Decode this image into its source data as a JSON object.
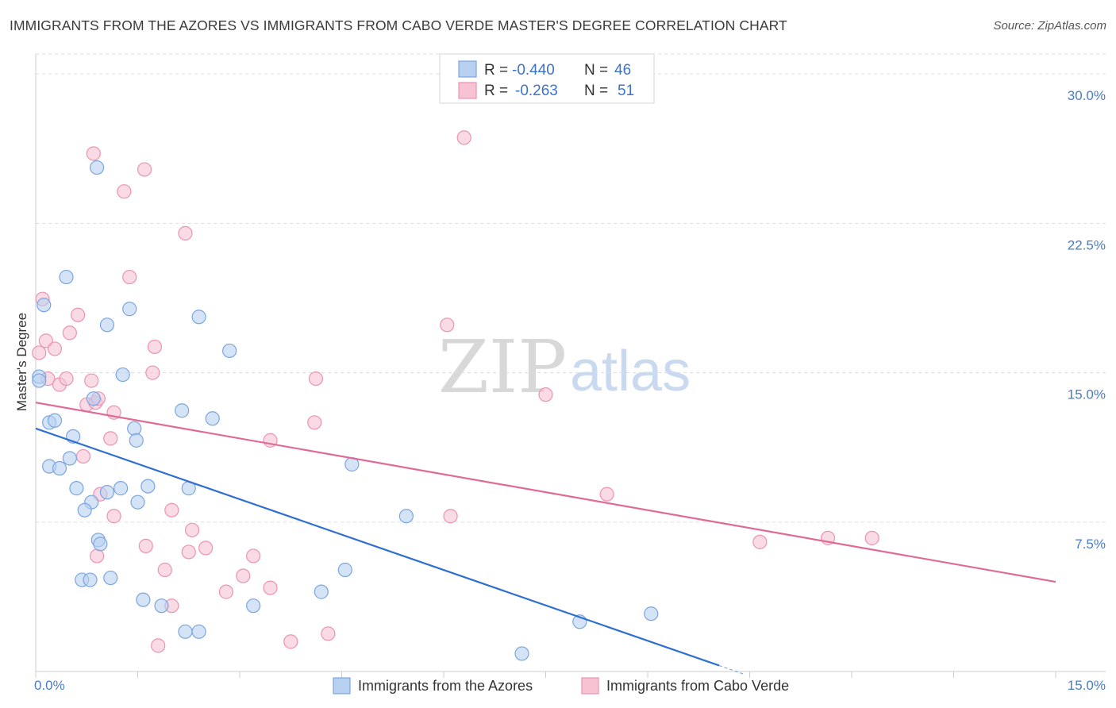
{
  "title": "IMMIGRANTS FROM THE AZORES VS IMMIGRANTS FROM CABO VERDE MASTER'S DEGREE CORRELATION CHART",
  "source": "Source: ZipAtlas.com",
  "watermark": {
    "part1": "ZIP",
    "part2": "atlas"
  },
  "colors": {
    "blue_fill": "#b8d0f0",
    "blue_stroke": "#7aa6e0",
    "blue_line": "#2e6fd0",
    "pink_fill": "#f7c3d3",
    "pink_stroke": "#ec93b0",
    "pink_line": "#e06a96",
    "grid": "#dddddd",
    "tick_text": "#4a7cc7"
  },
  "legend": {
    "rows": [
      {
        "r_label": "R =",
        "r_value": "-0.440",
        "n_label": "N =",
        "n_value": "46"
      },
      {
        "r_label": "R =",
        "r_value": "-0.263",
        "n_label": "N =",
        "n_value": "51"
      }
    ]
  },
  "bottom_legend": {
    "blue": "Immigrants from the Azores",
    "pink": "Immigrants from Cabo Verde"
  },
  "chart_data": {
    "type": "scatter",
    "title": "IMMIGRANTS FROM THE AZORES VS IMMIGRANTS FROM CABO VERDE MASTER'S DEGREE CORRELATION CHART",
    "xlabel": "",
    "ylabel": "Master's Degree",
    "xlim": [
      0,
      15
    ],
    "ylim": [
      0,
      31
    ],
    "x_tick_labels": [
      "0.0%",
      "15.0%"
    ],
    "y_ticks": [
      7.5,
      15.0,
      22.5,
      30.0
    ],
    "y_tick_labels": [
      "7.5%",
      "15.0%",
      "22.5%",
      "30.0%"
    ],
    "series": [
      {
        "name": "Immigrants from the Azores",
        "color": "blue",
        "points": [
          [
            0.05,
            14.8
          ],
          [
            0.12,
            18.4
          ],
          [
            0.45,
            19.8
          ],
          [
            0.9,
            25.3
          ],
          [
            0.2,
            12.5
          ],
          [
            0.28,
            12.6
          ],
          [
            0.55,
            11.8
          ],
          [
            0.5,
            10.7
          ],
          [
            0.2,
            10.3
          ],
          [
            0.35,
            10.2
          ],
          [
            0.6,
            9.2
          ],
          [
            0.85,
            13.7
          ],
          [
            1.05,
            17.4
          ],
          [
            1.38,
            18.2
          ],
          [
            1.28,
            14.9
          ],
          [
            1.45,
            12.2
          ],
          [
            1.48,
            11.6
          ],
          [
            1.25,
            9.2
          ],
          [
            1.05,
            9.0
          ],
          [
            0.82,
            8.5
          ],
          [
            0.72,
            8.1
          ],
          [
            0.92,
            6.6
          ],
          [
            0.95,
            6.4
          ],
          [
            0.68,
            4.6
          ],
          [
            0.8,
            4.6
          ],
          [
            1.1,
            4.7
          ],
          [
            1.5,
            8.5
          ],
          [
            1.65,
            9.3
          ],
          [
            1.58,
            3.6
          ],
          [
            1.85,
            3.3
          ],
          [
            2.15,
            13.1
          ],
          [
            2.25,
            9.2
          ],
          [
            2.4,
            17.8
          ],
          [
            2.6,
            12.7
          ],
          [
            2.85,
            16.1
          ],
          [
            2.2,
            2.0
          ],
          [
            2.4,
            2.0
          ],
          [
            3.2,
            3.3
          ],
          [
            4.2,
            4.0
          ],
          [
            4.55,
            5.1
          ],
          [
            4.65,
            10.4
          ],
          [
            5.45,
            7.8
          ],
          [
            7.15,
            0.9
          ],
          [
            8.0,
            2.5
          ],
          [
            9.05,
            2.9
          ],
          [
            0.05,
            14.6
          ]
        ]
      },
      {
        "name": "Immigrants from Cabo Verde",
        "color": "pink",
        "points": [
          [
            0.05,
            16.0
          ],
          [
            0.1,
            18.7
          ],
          [
            0.15,
            16.6
          ],
          [
            0.28,
            16.2
          ],
          [
            0.18,
            14.7
          ],
          [
            0.35,
            14.4
          ],
          [
            0.45,
            14.7
          ],
          [
            0.5,
            17.0
          ],
          [
            0.62,
            17.9
          ],
          [
            0.82,
            14.6
          ],
          [
            0.75,
            13.4
          ],
          [
            0.88,
            13.5
          ],
          [
            0.92,
            13.7
          ],
          [
            1.15,
            13.0
          ],
          [
            1.1,
            11.7
          ],
          [
            0.7,
            10.8
          ],
          [
            0.95,
            8.9
          ],
          [
            1.15,
            7.8
          ],
          [
            0.9,
            5.8
          ],
          [
            0.85,
            26.0
          ],
          [
            1.3,
            24.1
          ],
          [
            1.6,
            25.2
          ],
          [
            1.72,
            15.0
          ],
          [
            1.75,
            16.3
          ],
          [
            1.38,
            19.8
          ],
          [
            2.2,
            22.0
          ],
          [
            2.0,
            8.1
          ],
          [
            1.9,
            5.1
          ],
          [
            2.0,
            3.3
          ],
          [
            1.8,
            1.3
          ],
          [
            2.25,
            6.0
          ],
          [
            2.3,
            7.1
          ],
          [
            2.5,
            6.2
          ],
          [
            1.62,
            6.3
          ],
          [
            2.8,
            4.0
          ],
          [
            3.05,
            4.8
          ],
          [
            3.2,
            5.8
          ],
          [
            3.45,
            11.6
          ],
          [
            3.45,
            4.2
          ],
          [
            3.75,
            1.5
          ],
          [
            4.1,
            12.5
          ],
          [
            4.12,
            14.7
          ],
          [
            4.3,
            1.9
          ],
          [
            6.05,
            17.4
          ],
          [
            6.1,
            7.8
          ],
          [
            6.3,
            26.8
          ],
          [
            7.5,
            13.9
          ],
          [
            8.4,
            8.9
          ],
          [
            10.65,
            6.5
          ],
          [
            11.65,
            6.7
          ],
          [
            12.3,
            6.7
          ]
        ]
      }
    ],
    "trendlines": [
      {
        "series": "Immigrants from the Azores",
        "x": [
          0,
          10.05
        ],
        "y": [
          12.2,
          0.3
        ]
      },
      {
        "series": "Immigrants from Cabo Verde",
        "x": [
          0,
          15
        ],
        "y": [
          13.5,
          4.5
        ]
      }
    ],
    "grid": true,
    "legend_position": "top-center"
  }
}
